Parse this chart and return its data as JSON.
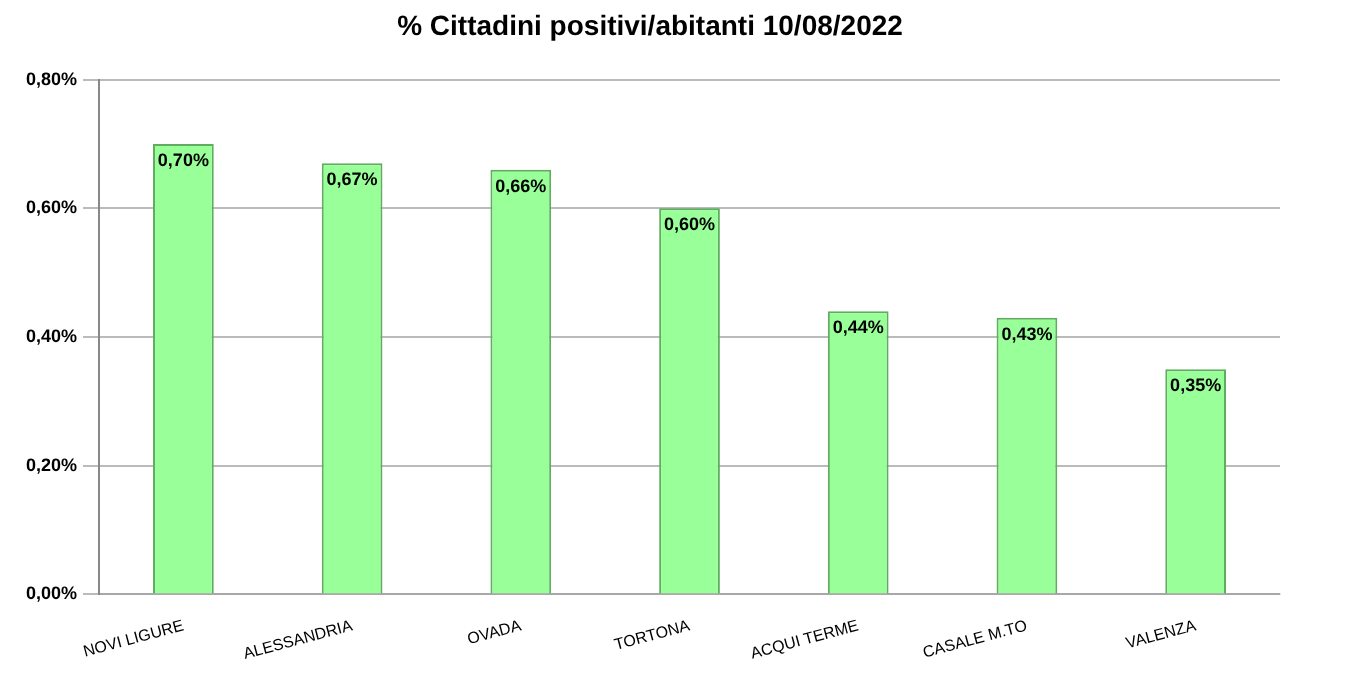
{
  "chart_data": {
    "type": "bar",
    "title": "% Cittadini positivi/abitanti 10/08/2022",
    "categories": [
      "NOVI LIGURE",
      "ALESSANDRIA",
      "OVADA",
      "TORTONA",
      "ACQUI TERME",
      "CASALE M.TO",
      "VALENZA"
    ],
    "values": [
      0.7,
      0.67,
      0.66,
      0.6,
      0.44,
      0.43,
      0.35
    ],
    "value_labels": [
      "0,70%",
      "0,67%",
      "0,66%",
      "0,60%",
      "0,44%",
      "0,43%",
      "0,35%"
    ],
    "color": "#99ff99",
    "ylim": [
      0,
      0.8
    ],
    "yticks": [
      {
        "value": 0,
        "label": "0,00%"
      },
      {
        "value": 0.2,
        "label": "0,20%"
      },
      {
        "value": 0.4,
        "label": "0,40%"
      },
      {
        "value": 0.6,
        "label": "0,60%"
      },
      {
        "value": 0.8,
        "label": "0,80%"
      }
    ],
    "grid": "y",
    "legend": false
  }
}
